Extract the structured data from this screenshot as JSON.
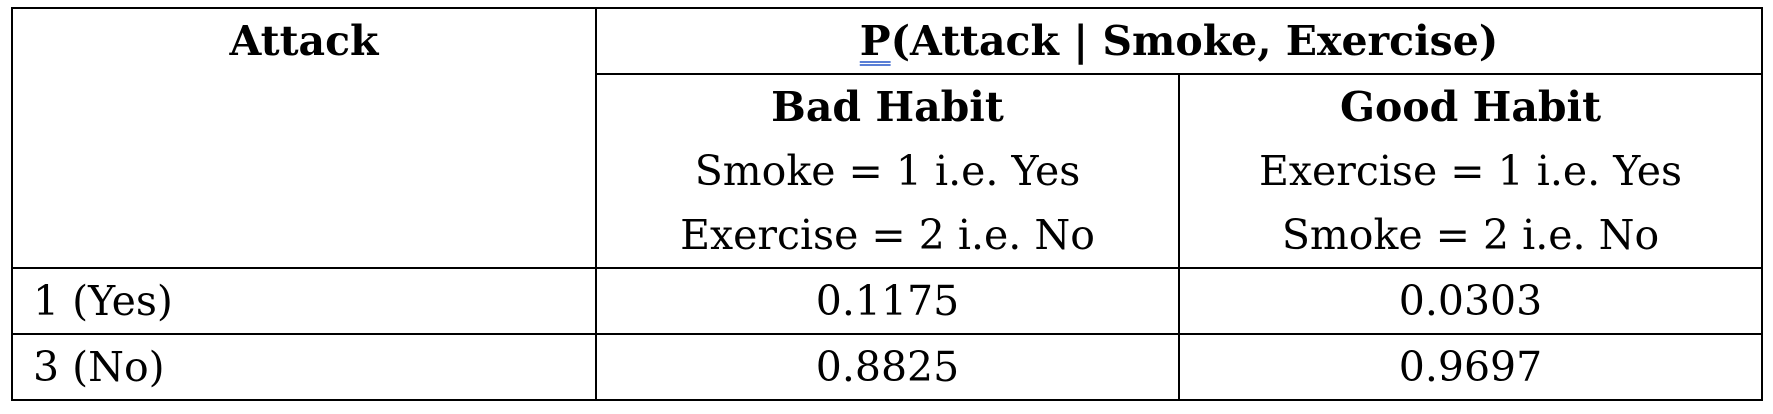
{
  "table": {
    "attack_header": "Attack",
    "main_header": {
      "p": "P",
      "rest": "(Attack | Smoke, Exercise)"
    },
    "columns": [
      {
        "title": "Bad Habit",
        "line1": "Smoke = 1 i.e. Yes",
        "line2": "Exercise = 2 i.e. No"
      },
      {
        "title": "Good Habit",
        "line1": "Exercise = 1 i.e. Yes",
        "line2": "Smoke = 2 i.e. No"
      }
    ],
    "rows": [
      {
        "label": "1 (Yes)",
        "bad": "0.1175",
        "good": "0.0303"
      },
      {
        "label": "3 (No)",
        "bad": "0.8825",
        "good": "0.9697"
      }
    ]
  }
}
